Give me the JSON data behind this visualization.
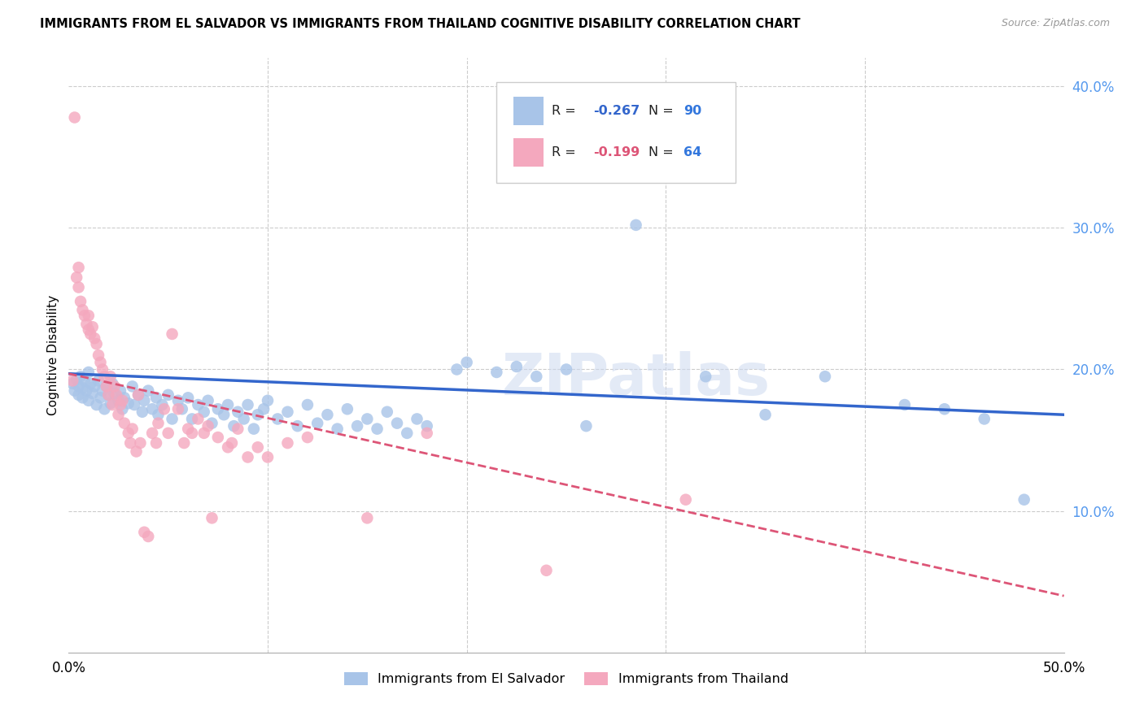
{
  "title": "IMMIGRANTS FROM EL SALVADOR VS IMMIGRANTS FROM THAILAND COGNITIVE DISABILITY CORRELATION CHART",
  "source": "Source: ZipAtlas.com",
  "ylabel": "Cognitive Disability",
  "xlim": [
    0.0,
    0.5
  ],
  "ylim": [
    0.0,
    0.42
  ],
  "yticks_right": [
    0.1,
    0.2,
    0.3,
    0.4
  ],
  "ytick_labels_right": [
    "10.0%",
    "20.0%",
    "30.0%",
    "40.0%"
  ],
  "color_salvador": "#a8c4e8",
  "color_thailand": "#f4a8be",
  "color_trendline_salvador": "#3366cc",
  "color_trendline_thailand": "#dd5577",
  "watermark": "ZIPatlas",
  "scatter_salvador": [
    [
      0.002,
      0.19
    ],
    [
      0.003,
      0.185
    ],
    [
      0.004,
      0.193
    ],
    [
      0.005,
      0.188
    ],
    [
      0.005,
      0.182
    ],
    [
      0.006,
      0.195
    ],
    [
      0.007,
      0.187
    ],
    [
      0.007,
      0.18
    ],
    [
      0.008,
      0.192
    ],
    [
      0.009,
      0.185
    ],
    [
      0.01,
      0.198
    ],
    [
      0.01,
      0.178
    ],
    [
      0.011,
      0.19
    ],
    [
      0.012,
      0.183
    ],
    [
      0.013,
      0.188
    ],
    [
      0.014,
      0.175
    ],
    [
      0.015,
      0.192
    ],
    [
      0.016,
      0.18
    ],
    [
      0.017,
      0.185
    ],
    [
      0.018,
      0.172
    ],
    [
      0.019,
      0.188
    ],
    [
      0.02,
      0.182
    ],
    [
      0.021,
      0.176
    ],
    [
      0.022,
      0.19
    ],
    [
      0.023,
      0.183
    ],
    [
      0.025,
      0.178
    ],
    [
      0.026,
      0.185
    ],
    [
      0.027,
      0.172
    ],
    [
      0.028,
      0.18
    ],
    [
      0.03,
      0.176
    ],
    [
      0.032,
      0.188
    ],
    [
      0.033,
      0.175
    ],
    [
      0.035,
      0.182
    ],
    [
      0.037,
      0.17
    ],
    [
      0.038,
      0.178
    ],
    [
      0.04,
      0.185
    ],
    [
      0.042,
      0.172
    ],
    [
      0.044,
      0.18
    ],
    [
      0.045,
      0.168
    ],
    [
      0.047,
      0.175
    ],
    [
      0.05,
      0.182
    ],
    [
      0.052,
      0.165
    ],
    [
      0.055,
      0.178
    ],
    [
      0.057,
      0.172
    ],
    [
      0.06,
      0.18
    ],
    [
      0.062,
      0.165
    ],
    [
      0.065,
      0.175
    ],
    [
      0.068,
      0.17
    ],
    [
      0.07,
      0.178
    ],
    [
      0.072,
      0.162
    ],
    [
      0.075,
      0.172
    ],
    [
      0.078,
      0.168
    ],
    [
      0.08,
      0.175
    ],
    [
      0.083,
      0.16
    ],
    [
      0.085,
      0.17
    ],
    [
      0.088,
      0.165
    ],
    [
      0.09,
      0.175
    ],
    [
      0.093,
      0.158
    ],
    [
      0.095,
      0.168
    ],
    [
      0.098,
      0.172
    ],
    [
      0.1,
      0.178
    ],
    [
      0.105,
      0.165
    ],
    [
      0.11,
      0.17
    ],
    [
      0.115,
      0.16
    ],
    [
      0.12,
      0.175
    ],
    [
      0.125,
      0.162
    ],
    [
      0.13,
      0.168
    ],
    [
      0.135,
      0.158
    ],
    [
      0.14,
      0.172
    ],
    [
      0.145,
      0.16
    ],
    [
      0.15,
      0.165
    ],
    [
      0.155,
      0.158
    ],
    [
      0.16,
      0.17
    ],
    [
      0.165,
      0.162
    ],
    [
      0.17,
      0.155
    ],
    [
      0.175,
      0.165
    ],
    [
      0.18,
      0.16
    ],
    [
      0.195,
      0.2
    ],
    [
      0.2,
      0.205
    ],
    [
      0.215,
      0.198
    ],
    [
      0.225,
      0.202
    ],
    [
      0.235,
      0.195
    ],
    [
      0.25,
      0.2
    ],
    [
      0.26,
      0.16
    ],
    [
      0.285,
      0.302
    ],
    [
      0.32,
      0.195
    ],
    [
      0.35,
      0.168
    ],
    [
      0.38,
      0.195
    ],
    [
      0.42,
      0.175
    ],
    [
      0.44,
      0.172
    ],
    [
      0.46,
      0.165
    ],
    [
      0.48,
      0.108
    ]
  ],
  "scatter_thailand": [
    [
      0.002,
      0.192
    ],
    [
      0.003,
      0.378
    ],
    [
      0.004,
      0.265
    ],
    [
      0.005,
      0.272
    ],
    [
      0.005,
      0.258
    ],
    [
      0.006,
      0.248
    ],
    [
      0.007,
      0.242
    ],
    [
      0.008,
      0.238
    ],
    [
      0.009,
      0.232
    ],
    [
      0.01,
      0.228
    ],
    [
      0.01,
      0.238
    ],
    [
      0.011,
      0.225
    ],
    [
      0.012,
      0.23
    ],
    [
      0.013,
      0.222
    ],
    [
      0.014,
      0.218
    ],
    [
      0.015,
      0.21
    ],
    [
      0.016,
      0.205
    ],
    [
      0.017,
      0.2
    ],
    [
      0.018,
      0.195
    ],
    [
      0.019,
      0.188
    ],
    [
      0.02,
      0.182
    ],
    [
      0.021,
      0.195
    ],
    [
      0.022,
      0.175
    ],
    [
      0.023,
      0.188
    ],
    [
      0.024,
      0.182
    ],
    [
      0.025,
      0.168
    ],
    [
      0.026,
      0.175
    ],
    [
      0.027,
      0.178
    ],
    [
      0.028,
      0.162
    ],
    [
      0.03,
      0.155
    ],
    [
      0.031,
      0.148
    ],
    [
      0.032,
      0.158
    ],
    [
      0.034,
      0.142
    ],
    [
      0.035,
      0.182
    ],
    [
      0.036,
      0.148
    ],
    [
      0.038,
      0.085
    ],
    [
      0.04,
      0.082
    ],
    [
      0.042,
      0.155
    ],
    [
      0.044,
      0.148
    ],
    [
      0.045,
      0.162
    ],
    [
      0.048,
      0.172
    ],
    [
      0.05,
      0.155
    ],
    [
      0.052,
      0.225
    ],
    [
      0.055,
      0.172
    ],
    [
      0.058,
      0.148
    ],
    [
      0.06,
      0.158
    ],
    [
      0.062,
      0.155
    ],
    [
      0.065,
      0.165
    ],
    [
      0.068,
      0.155
    ],
    [
      0.07,
      0.16
    ],
    [
      0.072,
      0.095
    ],
    [
      0.075,
      0.152
    ],
    [
      0.08,
      0.145
    ],
    [
      0.082,
      0.148
    ],
    [
      0.085,
      0.158
    ],
    [
      0.09,
      0.138
    ],
    [
      0.095,
      0.145
    ],
    [
      0.1,
      0.138
    ],
    [
      0.11,
      0.148
    ],
    [
      0.12,
      0.152
    ],
    [
      0.15,
      0.095
    ],
    [
      0.18,
      0.155
    ],
    [
      0.24,
      0.058
    ],
    [
      0.31,
      0.108
    ]
  ]
}
